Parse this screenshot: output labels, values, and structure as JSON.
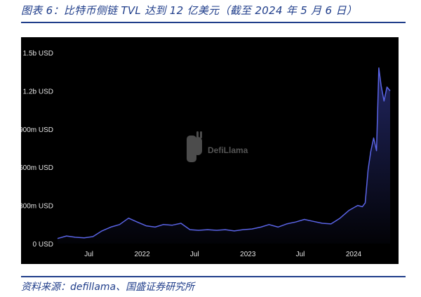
{
  "figure": {
    "title": "图表 6：比特币侧链 TVL 达到 12 亿美元（截至 2024 年 5 月 6 日）",
    "source": "资料来源：defillama、国盛证券研究所"
  },
  "watermark": {
    "text": "DefiLlama",
    "icon": "defillama-logo-icon"
  },
  "colors": {
    "background": "#000000",
    "line": "#5a64e6",
    "axis_text": "#e6e6e6",
    "brand": "#1f3d8a"
  },
  "chart_data": {
    "type": "area",
    "title": "",
    "xlabel": "",
    "ylabel": "",
    "ylim": [
      0,
      1500000000
    ],
    "yticks": [
      0,
      300000000,
      600000000,
      900000000,
      1200000000,
      1500000000
    ],
    "ytick_labels": [
      "0 USD",
      "300m USD",
      "600m USD",
      "900m USD",
      "1.2b USD",
      "1.5b USD"
    ],
    "xlim": [
      "2021-03-15",
      "2024-05-06"
    ],
    "xticks": [
      "2021-07-01",
      "2022-01-01",
      "2022-07-01",
      "2023-01-01",
      "2023-07-01",
      "2024-01-01"
    ],
    "xtick_labels": [
      "Jul",
      "2022",
      "Jul",
      "2023",
      "Jul",
      "2024"
    ],
    "grid": false,
    "legend": "none",
    "series": [
      {
        "x": [
          "2021-03-15",
          "2021-04-15",
          "2021-05-15",
          "2021-06-15",
          "2021-07-15",
          "2021-08-15",
          "2021-09-15",
          "2021-10-15",
          "2021-11-15",
          "2021-12-15",
          "2022-01-15",
          "2022-02-15",
          "2022-03-15",
          "2022-04-15",
          "2022-05-15",
          "2022-06-15",
          "2022-07-15",
          "2022-08-15",
          "2022-09-15",
          "2022-10-15",
          "2022-11-15",
          "2022-12-15",
          "2023-01-15",
          "2023-02-15",
          "2023-03-15",
          "2023-04-15",
          "2023-05-15",
          "2023-06-15",
          "2023-07-15",
          "2023-08-15",
          "2023-09-15",
          "2023-10-15",
          "2023-11-15",
          "2023-12-15",
          "2024-01-15",
          "2024-01-31",
          "2024-02-10",
          "2024-02-20",
          "2024-02-29",
          "2024-03-10",
          "2024-03-20",
          "2024-03-28",
          "2024-04-05",
          "2024-04-15",
          "2024-04-25",
          "2024-05-06"
        ],
        "values": [
          40000000,
          60000000,
          50000000,
          45000000,
          55000000,
          100000000,
          130000000,
          150000000,
          200000000,
          170000000,
          140000000,
          130000000,
          150000000,
          145000000,
          160000000,
          110000000,
          105000000,
          110000000,
          105000000,
          110000000,
          100000000,
          110000000,
          115000000,
          130000000,
          150000000,
          130000000,
          155000000,
          170000000,
          190000000,
          175000000,
          160000000,
          155000000,
          200000000,
          260000000,
          300000000,
          290000000,
          320000000,
          580000000,
          720000000,
          830000000,
          730000000,
          1380000000,
          1240000000,
          1120000000,
          1230000000,
          1200000000
        ]
      }
    ]
  }
}
